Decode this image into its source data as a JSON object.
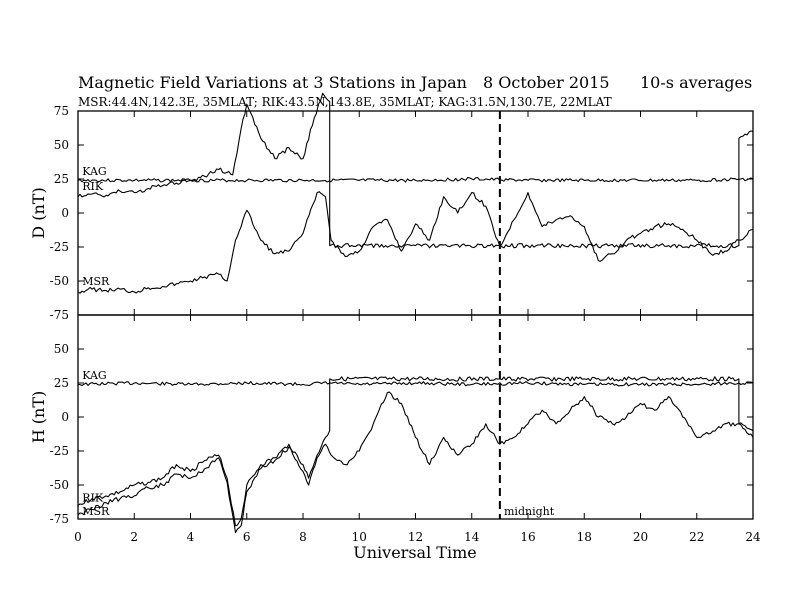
{
  "chart_data": {
    "type": "line",
    "title": "Magnetic Field Variations at 3 Stations in Japan",
    "date_label": "8   October 2015",
    "average_label": "10-s averages",
    "subtitle": "MSR:44.4N,142.3E, 35MLAT;  RIK:43.5N,143.8E, 35MLAT;  KAG:31.5N,130.7E, 22MLAT",
    "xlabel": "Universal Time",
    "xlim": [
      0,
      24
    ],
    "x_ticks": [
      0,
      2,
      4,
      6,
      8,
      10,
      12,
      14,
      16,
      18,
      20,
      22,
      24
    ],
    "x_tick_labels": [
      "0",
      "2",
      "4",
      "6",
      "8",
      "10",
      "12",
      "14",
      "16",
      "18",
      "20",
      "22",
      "24"
    ],
    "annotation": {
      "x": 15,
      "label": "midnight"
    },
    "panels": [
      {
        "ylabel": "D (nT)",
        "ylim": [
          -75,
          75
        ],
        "y_ticks": [
          75,
          50,
          25,
          0,
          -25,
          -50,
          -75
        ],
        "y_tick_labels": [
          "75",
          "50",
          "25",
          "0",
          "-25",
          "-50",
          "-75"
        ],
        "series": [
          {
            "name": "KAG",
            "label_at": [
              0.15,
              28
            ],
            "x": [
              0,
              2,
              4,
              6,
              8,
              10,
              12,
              14,
              16,
              18,
              20,
              22,
              24
            ],
            "y": [
              24,
              24,
              24,
              24,
              24,
              24,
              24,
              25,
              24,
              24,
              24,
              24,
              25
            ]
          },
          {
            "name": "RIK",
            "label_at": [
              0.15,
              17
            ],
            "x": [
              0,
              0.5,
              1,
              1.5,
              2,
              2.5,
              3,
              3.5,
              4,
              4.5,
              5,
              5.5,
              5.8,
              6,
              6.5,
              7,
              7.5,
              8,
              8.4,
              8.7,
              8.95,
              8.95,
              12,
              15,
              18,
              21,
              23.5,
              23.5,
              24
            ],
            "y": [
              12,
              14,
              13,
              16,
              15,
              18,
              20,
              22,
              24,
              27,
              32,
              28,
              62,
              80,
              55,
              40,
              48,
              40,
              70,
              88,
              82,
              -24,
              -24,
              -24,
              -24,
              -24,
              -24,
              55,
              60
            ]
          },
          {
            "name": "MSR",
            "label_at": [
              0.15,
              -53
            ],
            "x": [
              0,
              0.5,
              1,
              1.5,
              2,
              2.5,
              3,
              3.5,
              4,
              4.5,
              5,
              5.3,
              5.6,
              6,
              6.5,
              7,
              7.5,
              8,
              8.5,
              8.8,
              9,
              9.5,
              10,
              10.5,
              11,
              11.5,
              12,
              12.5,
              13,
              13.5,
              14,
              14.5,
              15,
              15.5,
              16,
              16.5,
              17,
              17.5,
              18,
              18.5,
              19,
              19.5,
              20,
              20.5,
              21,
              21.5,
              22,
              22.5,
              23,
              23.5,
              24
            ],
            "y": [
              -58,
              -56,
              -57,
              -56,
              -58,
              -55,
              -54,
              -52,
              -50,
              -47,
              -45,
              -50,
              -20,
              2,
              -20,
              -30,
              -28,
              -15,
              15,
              12,
              -20,
              -32,
              -28,
              -10,
              -5,
              -28,
              -8,
              -20,
              12,
              0,
              15,
              5,
              -25,
              -5,
              15,
              -10,
              -5,
              -2,
              -10,
              -35,
              -30,
              -20,
              -15,
              -10,
              -8,
              -12,
              -20,
              -30,
              -28,
              -20,
              -12
            ]
          }
        ]
      },
      {
        "ylabel": "H (nT)",
        "ylim": [
          -75,
          75
        ],
        "y_ticks": [
          75,
          50,
          25,
          0,
          -25,
          -50,
          -75
        ],
        "y_tick_labels": [
          "75",
          "50",
          "25",
          "0",
          "-25",
          "-50",
          "-75"
        ],
        "series": [
          {
            "name": "KAG",
            "label_at": [
              0.15,
              28
            ],
            "x": [
              0,
              2,
              4,
              6,
              8,
              8.95,
              10,
              12,
              14,
              16,
              18,
              20,
              22,
              23.5,
              24
            ],
            "y": [
              24,
              25,
              24,
              25,
              24,
              25,
              24,
              25,
              24,
              25,
              24,
              24,
              24,
              25,
              25
            ]
          },
          {
            "name": "RIK",
            "label_at": [
              0.15,
              -62
            ],
            "x": [
              0,
              0.5,
              1,
              1.5,
              2,
              2.5,
              3,
              3.5,
              4,
              4.5,
              5,
              5.3,
              5.6,
              5.8,
              6,
              6.5,
              7,
              7.5,
              8,
              8.2,
              8.5,
              8.8,
              8.95,
              8.95,
              12,
              15,
              18,
              21,
              23.5,
              23.5,
              24
            ],
            "y": [
              -65,
              -60,
              -58,
              -55,
              -50,
              -48,
              -45,
              -35,
              -40,
              -32,
              -28,
              -45,
              -80,
              -75,
              -50,
              -35,
              -30,
              -20,
              -35,
              -45,
              -28,
              -15,
              -10,
              28,
              28,
              28,
              28,
              28,
              28,
              -5,
              -10
            ]
          },
          {
            "name": "MSR",
            "label_at": [
              0.15,
              -72
            ],
            "x": [
              0,
              0.5,
              1,
              1.5,
              2,
              2.5,
              3,
              3.5,
              4,
              4.5,
              5,
              5.3,
              5.6,
              5.8,
              6,
              6.5,
              7,
              7.5,
              8,
              8.2,
              8.5,
              8.8,
              9,
              9.5,
              10,
              10.5,
              11,
              11.5,
              12,
              12.5,
              13,
              13.5,
              14,
              14.5,
              15,
              15.5,
              16,
              16.5,
              17,
              17.5,
              18,
              18.5,
              19,
              19.5,
              20,
              20.5,
              21,
              21.5,
              22,
              22.5,
              23,
              23.5,
              24
            ],
            "y": [
              -72,
              -68,
              -63,
              -60,
              -58,
              -52,
              -50,
              -42,
              -45,
              -38,
              -30,
              -48,
              -85,
              -80,
              -55,
              -38,
              -32,
              -22,
              -40,
              -50,
              -30,
              -20,
              -28,
              -35,
              -25,
              -5,
              18,
              10,
              -15,
              -35,
              -15,
              -28,
              -20,
              -5,
              -20,
              -15,
              -5,
              5,
              -5,
              5,
              15,
              0,
              -5,
              0,
              10,
              5,
              15,
              0,
              -15,
              -12,
              -5,
              -5,
              -15
            ]
          }
        ]
      }
    ]
  }
}
